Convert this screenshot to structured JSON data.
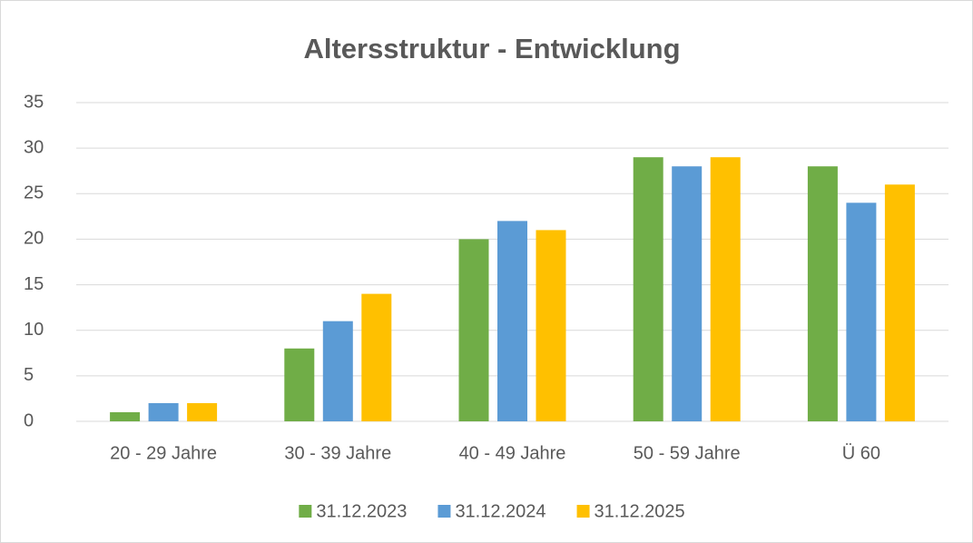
{
  "chart_data": {
    "type": "bar",
    "title": "Altersstruktur - Entwicklung",
    "categories": [
      "20 - 29 Jahre",
      "30 - 39 Jahre",
      "40 - 49 Jahre",
      "50 - 59 Jahre",
      "Ü 60"
    ],
    "series": [
      {
        "name": "31.12.2023",
        "color": "#70ad47",
        "values": [
          1,
          8,
          20,
          29,
          28
        ]
      },
      {
        "name": "31.12.2024",
        "color": "#5b9bd5",
        "values": [
          2,
          11,
          22,
          28,
          24
        ]
      },
      {
        "name": "31.12.2025",
        "color": "#ffc000",
        "values": [
          2,
          14,
          21,
          29,
          26
        ]
      }
    ],
    "ylim": [
      0,
      35
    ],
    "yticks": [
      0,
      5,
      10,
      15,
      20,
      25,
      30,
      35
    ],
    "grid": true,
    "legend": "bottom"
  }
}
